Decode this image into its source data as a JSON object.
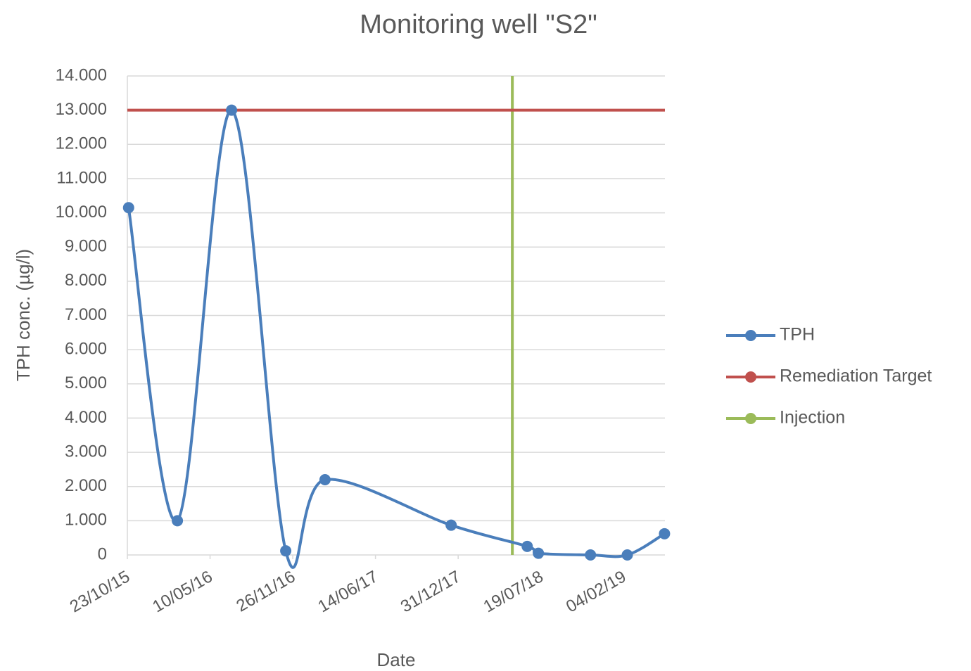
{
  "chart_data": {
    "type": "line",
    "title": "Monitoring well \"S2\"",
    "xlabel": "Date",
    "ylabel": "TPH conc. (µg/l)",
    "xlim": [
      "2015-10-23",
      "2019-05-15"
    ],
    "xticks": [
      {
        "value": "2015-10-23",
        "label": "23/10/15"
      },
      {
        "value": "2016-05-10",
        "label": "10/05/16"
      },
      {
        "value": "2016-11-26",
        "label": "26/11/16"
      },
      {
        "value": "2017-06-14",
        "label": "14/06/17"
      },
      {
        "value": "2017-12-31",
        "label": "31/12/17"
      },
      {
        "value": "2018-07-19",
        "label": "19/07/18"
      },
      {
        "value": "2019-02-04",
        "label": "04/02/19"
      }
    ],
    "ylim": [
      0,
      14000
    ],
    "yticks": [
      0,
      {
        "value": 1000,
        "label": "1.000"
      },
      {
        "value": 2000,
        "label": "2.000"
      },
      {
        "value": 3000,
        "label": "3.000"
      },
      {
        "value": 4000,
        "label": "4.000"
      },
      {
        "value": 5000,
        "label": "5.000"
      },
      {
        "value": 6000,
        "label": "6.000"
      },
      {
        "value": 7000,
        "label": "7.000"
      },
      {
        "value": 8000,
        "label": "8.000"
      },
      {
        "value": 9000,
        "label": "9.000"
      },
      {
        "value": 10000,
        "label": "10.000"
      },
      {
        "value": 11000,
        "label": "11.000"
      },
      {
        "value": 12000,
        "label": "12.000"
      },
      {
        "value": 13000,
        "label": "13.000"
      },
      {
        "value": 14000,
        "label": "14.000"
      }
    ],
    "grid": true,
    "legend": "right",
    "series": [
      {
        "name": "TPH",
        "color": "#4a7ebb",
        "smooth": true,
        "markers": true,
        "x": [
          "2015-10-26",
          "2016-02-21",
          "2016-07-01",
          "2016-11-09",
          "2017-02-12",
          "2017-12-14",
          "2018-06-16",
          "2018-07-13",
          "2018-11-16",
          "2019-02-13",
          "2019-05-14"
        ],
        "values": [
          10150,
          1000,
          13000,
          120,
          2200,
          870,
          250,
          50,
          0,
          0,
          620
        ]
      },
      {
        "name": "Remediation Target",
        "color": "#c0504d",
        "smooth": false,
        "markers": false,
        "x": [
          "2015-10-23",
          "2019-05-15"
        ],
        "values": [
          13000,
          13000
        ]
      },
      {
        "name": "Injection",
        "color": "#9bbb59",
        "smooth": false,
        "markers": false,
        "x": [
          "2018-05-11",
          "2018-05-11"
        ],
        "values": [
          0,
          14000
        ]
      }
    ]
  }
}
